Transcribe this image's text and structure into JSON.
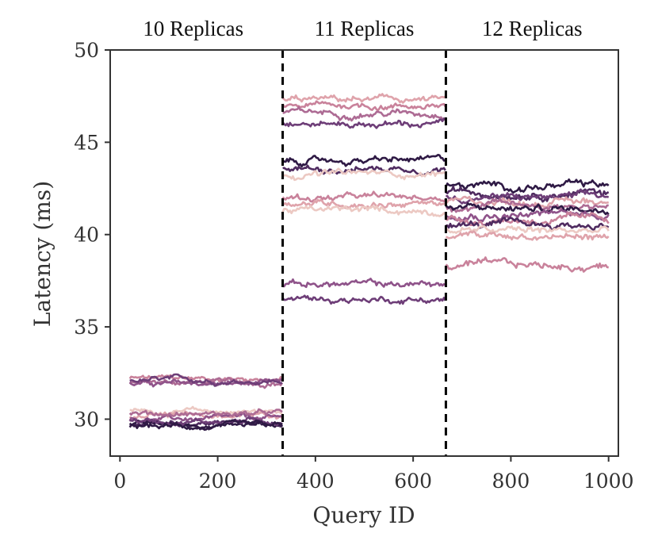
{
  "chart_data": {
    "type": "line",
    "title": "",
    "xlabel": "Query ID",
    "ylabel": "Latency (ms)",
    "xlim": [
      -20,
      1020
    ],
    "ylim": [
      28,
      50
    ],
    "xticks": [
      0,
      200,
      400,
      600,
      800,
      1000
    ],
    "yticks": [
      30,
      35,
      40,
      45,
      50
    ],
    "grid": false,
    "legend": "none",
    "dividers": [
      333,
      667
    ],
    "regions": [
      {
        "label": "10 Replicas",
        "x_start": 20,
        "x_end": 333
      },
      {
        "label": "11 Replicas",
        "x_start": 333,
        "x_end": 667
      },
      {
        "label": "12 Replicas",
        "x_start": 667,
        "x_end": 1000
      }
    ],
    "palette": [
      "#ecc9c3",
      "#dfa3ab",
      "#c9829b",
      "#ad6b94",
      "#8f538a",
      "#6e3e78",
      "#4f2b60",
      "#2f1a45"
    ],
    "series_groups": [
      {
        "region": "10 Replicas",
        "levels": [
          32.2,
          32.0,
          31.9,
          32.1,
          30.4,
          30.2,
          30.0,
          29.8,
          29.7,
          29.9,
          30.3,
          29.6
        ],
        "colors": [
          "#c9829b",
          "#ad6b94",
          "#8f538a",
          "#6e3e78",
          "#ecc9c3",
          "#dfa3ab",
          "#8f538a",
          "#4f2b60",
          "#2f1a45",
          "#6e3e78",
          "#ad6b94",
          "#2f1a45"
        ],
        "noise": 0.25
      },
      {
        "region": "11 Replicas",
        "levels": [
          47.3,
          47.0,
          46.6,
          46.0,
          44.0,
          43.6,
          43.3,
          42.0,
          41.7,
          41.3,
          37.3,
          36.5
        ],
        "colors": [
          "#dfa3ab",
          "#c9829b",
          "#ad6b94",
          "#6e3e78",
          "#2f1a45",
          "#4f2b60",
          "#ecc9c3",
          "#c9829b",
          "#dfa3ab",
          "#ecc9c3",
          "#8f538a",
          "#6e3e78"
        ],
        "noise": 0.3
      },
      {
        "region": "12 Replicas",
        "levels": [
          42.6,
          42.3,
          42.0,
          41.8,
          41.6,
          41.4,
          41.1,
          40.8,
          40.5,
          40.2,
          39.9,
          38.3
        ],
        "colors": [
          "#2f1a45",
          "#4f2b60",
          "#6e3e78",
          "#dfa3ab",
          "#ad6b94",
          "#2f1a45",
          "#8f538a",
          "#c9829b",
          "#4f2b60",
          "#ecc9c3",
          "#dfa3ab",
          "#c9829b"
        ],
        "noise": 0.35
      }
    ]
  }
}
